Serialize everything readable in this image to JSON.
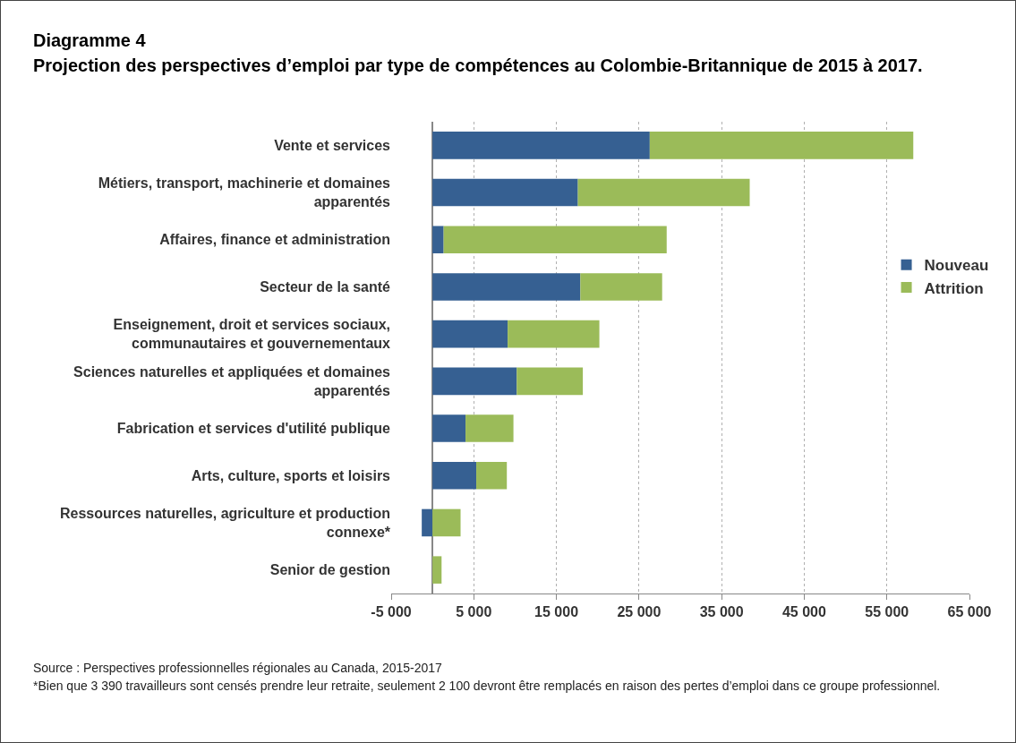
{
  "chart_data": {
    "type": "bar",
    "orientation": "horizontal",
    "stacked": true,
    "title": "Diagramme 4",
    "subtitle": "Projection des perspectives d’emploi par type de compétences au Colombie-Britannique de 2015 à 2017.",
    "categories": [
      "Vente et services",
      "Métiers, transport, machinerie et domaines apparentés",
      "Affaires, finance et administration",
      "Secteur de la santé",
      "Enseignement, droit et services sociaux, communautaires et gouvernementaux",
      "Sciences naturelles et appliquées et domaines apparentés",
      "Fabrication et services d'utilité publique",
      "Arts, culture, sports et loisirs",
      "Ressources naturelles, agriculture et production connexe*",
      "Senior de gestion"
    ],
    "series": [
      {
        "name": "Nouveau",
        "color": "#366092",
        "values": [
          26300,
          17600,
          1350,
          17900,
          9100,
          10200,
          4000,
          5300,
          -1300,
          0
        ]
      },
      {
        "name": "Attrition",
        "color": "#9bbb59",
        "values": [
          31900,
          20800,
          27000,
          9900,
          11100,
          8000,
          5800,
          3700,
          3400,
          1100
        ]
      }
    ],
    "xlim": [
      -5000,
      65000
    ],
    "xticks": [
      {
        "value": -5000,
        "label": "-5 000"
      },
      {
        "value": 5000,
        "label": "5 000"
      },
      {
        "value": 15000,
        "label": "15 000"
      },
      {
        "value": 25000,
        "label": "25 000"
      },
      {
        "value": 35000,
        "label": "35 000"
      },
      {
        "value": 45000,
        "label": "45 000"
      },
      {
        "value": 55000,
        "label": "55 000"
      },
      {
        "value": 65000,
        "label": "65 000"
      }
    ],
    "grid": "x",
    "legend": "right",
    "annotations": [
      "Source : Perspectives professionnelles régionales au Canada, 2015-2017",
      "*Bien que 3 390 travailleurs sont censés prendre leur retraite, seulement 2 100 devront être remplacés en raison des pertes d’emploi dans ce groupe professionnel."
    ]
  }
}
